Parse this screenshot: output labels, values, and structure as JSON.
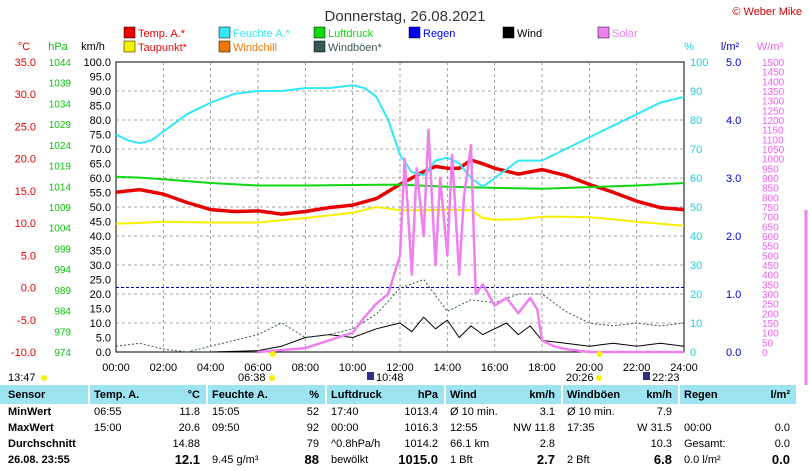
{
  "header": {
    "title": "Donnerstag, 26.08.2021",
    "copyright": "© Weber Mike"
  },
  "axis_units": {
    "temp": "°C",
    "pressure": "hPa",
    "wind": "km/h",
    "humidity": "%",
    "rain": "l/m²",
    "solar": "W/m²"
  },
  "legend": [
    {
      "label": "Temp. A.*",
      "color": "#e80000"
    },
    {
      "label": "Taupunkt*",
      "color": "#f8f000"
    },
    {
      "label": "Feuchte A.*",
      "color": "#30e8f8"
    },
    {
      "label": "Windchill",
      "color": "#f07800"
    },
    {
      "label": "Luftdruck",
      "color": "#10d810"
    },
    {
      "label": "Windböen*",
      "color": "#385858"
    },
    {
      "label": "Regen",
      "color": "#0000f0"
    },
    {
      "label": "Wind",
      "color": "#000000"
    },
    {
      "label": "Solar",
      "color": "#f080f0"
    }
  ],
  "chart_data": {
    "type": "line",
    "x_ticks": [
      "00:00",
      "02:00",
      "04:00",
      "06:00",
      "08:00",
      "10:00",
      "12:00",
      "14:00",
      "16:00",
      "18:00",
      "20:00",
      "22:00",
      "24:00"
    ],
    "axes": {
      "temp": {
        "ticks": [
          "35.0",
          "30.0",
          "25.0",
          "20.0",
          "15.0",
          "10.0",
          "5.0",
          "0.0",
          "-5.0",
          "-10.0"
        ],
        "range": [
          -10,
          35
        ],
        "color": "#e80000"
      },
      "pressure": {
        "ticks": [
          "1044",
          "1039",
          "1034",
          "1029",
          "1024",
          "1019",
          "1014",
          "1009",
          "1004",
          "999",
          "994",
          "989",
          "984",
          "979",
          "974"
        ],
        "range": [
          974,
          1044
        ],
        "color": "#10c010"
      },
      "wind": {
        "ticks": [
          "100.0",
          "95.0",
          "90.0",
          "85.0",
          "80.0",
          "75.0",
          "70.0",
          "65.0",
          "60.0",
          "55.0",
          "50.0",
          "45.0",
          "40.0",
          "35.0",
          "30.0",
          "25.0",
          "20.0",
          "15.0",
          "10.0",
          "5.0",
          "0.0"
        ],
        "range": [
          0,
          100
        ],
        "color": "#000000"
      },
      "humidity": {
        "ticks": [
          "100",
          "90",
          "80",
          "70",
          "60",
          "50",
          "40",
          "30",
          "20",
          "10",
          "0"
        ],
        "range": [
          0,
          100
        ],
        "color": "#20d0e0"
      },
      "rain": {
        "ticks": [
          "5.0",
          "4.0",
          "3.0",
          "2.0",
          "1.0",
          "0.0"
        ],
        "range": [
          0,
          5
        ],
        "color": "#0000d0"
      },
      "solar": {
        "ticks": [
          "1500",
          "1450",
          "1400",
          "1350",
          "1300",
          "1250",
          "1200",
          "1150",
          "1100",
          "1050",
          "1000",
          "950",
          "900",
          "850",
          "800",
          "750",
          "700",
          "650",
          "600",
          "550",
          "500",
          "450",
          "400",
          "350",
          "300",
          "250",
          "200",
          "150",
          "100",
          "50",
          "0"
        ],
        "range": [
          0,
          1500
        ],
        "color": "#f060f0"
      }
    },
    "series": [
      {
        "name": "Temp. A.*",
        "axis": "temp",
        "color": "#e80000",
        "x": [
          0,
          1,
          2,
          3,
          4,
          5,
          6,
          7,
          8,
          9,
          10,
          11,
          12,
          12.5,
          13,
          13.5,
          14,
          14.5,
          15,
          15.5,
          16,
          17,
          18,
          19,
          20,
          21,
          22,
          23,
          24
        ],
        "y": [
          14.8,
          15.2,
          14.5,
          13.2,
          12.1,
          11.8,
          11.9,
          11.4,
          11.8,
          12.4,
          12.8,
          13.8,
          16.0,
          17.0,
          18.0,
          18.8,
          18.5,
          18.5,
          19.8,
          19.2,
          18.5,
          17.6,
          18.3,
          17.4,
          16.0,
          14.8,
          13.4,
          12.4,
          12.1
        ]
      },
      {
        "name": "Taupunkt*",
        "axis": "temp",
        "color": "#f8f000",
        "x": [
          0,
          2,
          4,
          6,
          8,
          10,
          11,
          12,
          13,
          14,
          15,
          15.5,
          16,
          17,
          18,
          19,
          20,
          21,
          22,
          23,
          24
        ],
        "y": [
          9.9,
          10.2,
          10.1,
          10.1,
          10.8,
          11.6,
          12.5,
          12.0,
          12.0,
          12.1,
          12.0,
          10.8,
          10.5,
          10.6,
          11.0,
          11.0,
          10.9,
          10.6,
          10.2,
          9.9,
          9.6
        ]
      },
      {
        "name": "Luftdruck",
        "axis": "pressure",
        "color": "#10d810",
        "x": [
          0,
          1,
          2,
          4,
          6,
          8,
          10,
          12,
          14,
          16,
          18,
          20,
          22,
          24
        ],
        "y": [
          1016.3,
          1016.1,
          1015.7,
          1014.8,
          1014.2,
          1014.2,
          1014.3,
          1014.4,
          1013.9,
          1013.6,
          1013.4,
          1013.8,
          1014.2,
          1014.8
        ]
      },
      {
        "name": "Feuchte A.*",
        "axis": "humidity",
        "color": "#30e8f8",
        "x": [
          0,
          0.5,
          1,
          1.5,
          2,
          3,
          4,
          5,
          6,
          7,
          8,
          9,
          10,
          10.5,
          11,
          11.5,
          12,
          12.5,
          13,
          13.5,
          14,
          14.5,
          15,
          15.5,
          16,
          17,
          18,
          19,
          20,
          21,
          22,
          23,
          24
        ],
        "y": [
          75,
          73,
          72,
          73,
          76,
          82,
          86,
          89,
          90,
          90,
          91,
          91,
          92,
          91,
          88,
          80,
          68,
          62,
          61,
          66,
          67,
          65,
          60,
          57,
          60,
          66,
          66,
          70,
          74,
          78,
          82,
          86,
          88
        ]
      },
      {
        "name": "Wind",
        "axis": "wind",
        "color": "#000000",
        "x": [
          0,
          2,
          4,
          6,
          7,
          8,
          9,
          10,
          11,
          12,
          12.5,
          13,
          13.5,
          14,
          14.5,
          15,
          15.5,
          16,
          16.5,
          17,
          17.5,
          18,
          19,
          20,
          21,
          22,
          23,
          24
        ],
        "y": [
          0,
          0,
          0,
          0.5,
          2,
          5,
          6,
          5,
          8,
          10,
          7,
          12,
          8,
          11,
          5,
          9,
          6,
          8,
          10,
          6,
          9,
          4,
          3,
          2,
          3,
          2,
          3,
          2
        ]
      },
      {
        "name": "Windböen*",
        "axis": "wind",
        "color": "#385858",
        "x": [
          0,
          1,
          2,
          3,
          4,
          5,
          6,
          7,
          8,
          9,
          10,
          11,
          12,
          13,
          14,
          15,
          16,
          17,
          18,
          19,
          20,
          21,
          22,
          23,
          24
        ],
        "y": [
          2,
          3,
          1,
          0,
          2,
          4,
          6,
          10,
          5,
          6,
          8,
          13,
          22,
          25,
          14,
          18,
          17,
          20,
          20,
          14,
          10,
          9,
          10,
          9,
          10
        ]
      },
      {
        "name": "Solar",
        "axis": "solar",
        "color": "#f080f0",
        "x": [
          6,
          8,
          9,
          10,
          10.5,
          11,
          11.5,
          12,
          12.2,
          12.5,
          12.7,
          13,
          13.2,
          13.5,
          13.7,
          14,
          14.2,
          14.5,
          14.7,
          15,
          15.2,
          15.5,
          16,
          16.5,
          17,
          17.5,
          17.8,
          18,
          18.5,
          19,
          20,
          21,
          24
        ],
        "y": [
          0,
          20,
          60,
          100,
          180,
          250,
          300,
          500,
          1000,
          400,
          950,
          600,
          1150,
          450,
          900,
          500,
          1020,
          400,
          800,
          1070,
          300,
          350,
          240,
          280,
          200,
          280,
          220,
          60,
          30,
          15,
          0,
          0,
          0
        ]
      }
    ]
  },
  "markers": {
    "sunrise_left": "13:47",
    "sunrise": "06:38",
    "moon_left": "10:48",
    "sunset": "20:26",
    "moon_right": "22:23"
  },
  "table": {
    "labels": {
      "sensor": "Sensor",
      "min": "MinWert",
      "max": "MaxWert",
      "avg": "Durchschnitt",
      "current": "26.08. 23:55"
    },
    "columns": [
      {
        "title": "Temp. A.",
        "unit": "°C",
        "min_time": "06:55",
        "min_val": "11.8",
        "max_time": "15:00",
        "max_val": "20.6",
        "avg_label": "",
        "avg_val": "14.88",
        "cur_label": "",
        "cur_val": "12.1"
      },
      {
        "title": "Feuchte A.",
        "unit": "%",
        "min_time": "15:05",
        "min_val": "52",
        "max_time": "09:50",
        "max_val": "92",
        "avg_label": "",
        "avg_val": "79",
        "cur_label": "9.45 g/m³",
        "cur_val": "88"
      },
      {
        "title": "Luftdruck",
        "unit": "hPa",
        "min_time": "17:40",
        "min_val": "1013.4",
        "max_time": "00:00",
        "max_val": "1016.3",
        "avg_label": "^0.8hPa/h",
        "avg_val": "1014.2",
        "cur_label": "bewölkt",
        "cur_val": "1015.0"
      },
      {
        "title": "Wind",
        "unit": "km/h",
        "min_time": "Ø 10 min.",
        "min_val": "3.1",
        "max_time": "12:55",
        "max_val": "NW 11.8",
        "avg_label": "66.1 km",
        "avg_val": "2.8",
        "cur_label": "1 Bft",
        "cur_val": "2.7"
      },
      {
        "title": "Windböen",
        "unit": "km/h",
        "min_time": "Ø 10 min.",
        "min_val": "7.9",
        "max_time": "17:35",
        "max_val": "W 31.5",
        "avg_label": "",
        "avg_val": "10.3",
        "cur_label": "2 Bft",
        "cur_val": "6.8"
      },
      {
        "title": "Regen",
        "unit": "l/m²",
        "min_time": "",
        "min_val": "",
        "max_time": "00:00",
        "max_val": "0.0",
        "avg_label": "Gesamt:",
        "avg_val": "0.0",
        "cur_label": "0.0 l/m²",
        "cur_val": "0.0"
      }
    ]
  }
}
